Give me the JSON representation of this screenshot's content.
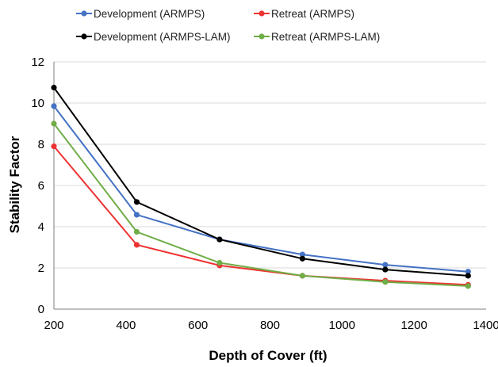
{
  "chart_data": {
    "type": "line",
    "title": "",
    "xlabel": "Depth of Cover (ft)",
    "ylabel": "Stability Factor",
    "xlim": [
      200,
      1400
    ],
    "ylim": [
      0,
      12
    ],
    "x_ticks": [
      "200",
      "400",
      "600",
      "800",
      "1000",
      "1200",
      "1400"
    ],
    "y_ticks": [
      "0",
      "2",
      "4",
      "6",
      "8",
      "10",
      "12"
    ],
    "grid": "horizontal",
    "legend_position": "top",
    "x": [
      200,
      430,
      660,
      890,
      1120,
      1350
    ],
    "series": [
      {
        "name": "Development (ARMPS)",
        "color": "#4472c4",
        "values": [
          9.85,
          4.58,
          3.38,
          2.65,
          2.15,
          1.82
        ]
      },
      {
        "name": "Retreat (ARMPS)",
        "color": "#ee3333",
        "values": [
          7.9,
          3.12,
          2.12,
          1.62,
          1.38,
          1.18
        ]
      },
      {
        "name": "Development (ARMPS-LAM)",
        "color": "#000000",
        "values": [
          10.75,
          5.2,
          3.38,
          2.45,
          1.92,
          1.62
        ]
      },
      {
        "name": "Retreat (ARMPS-LAM)",
        "color": "#70ad47",
        "values": [
          9.0,
          3.75,
          2.25,
          1.62,
          1.32,
          1.12
        ]
      }
    ]
  }
}
